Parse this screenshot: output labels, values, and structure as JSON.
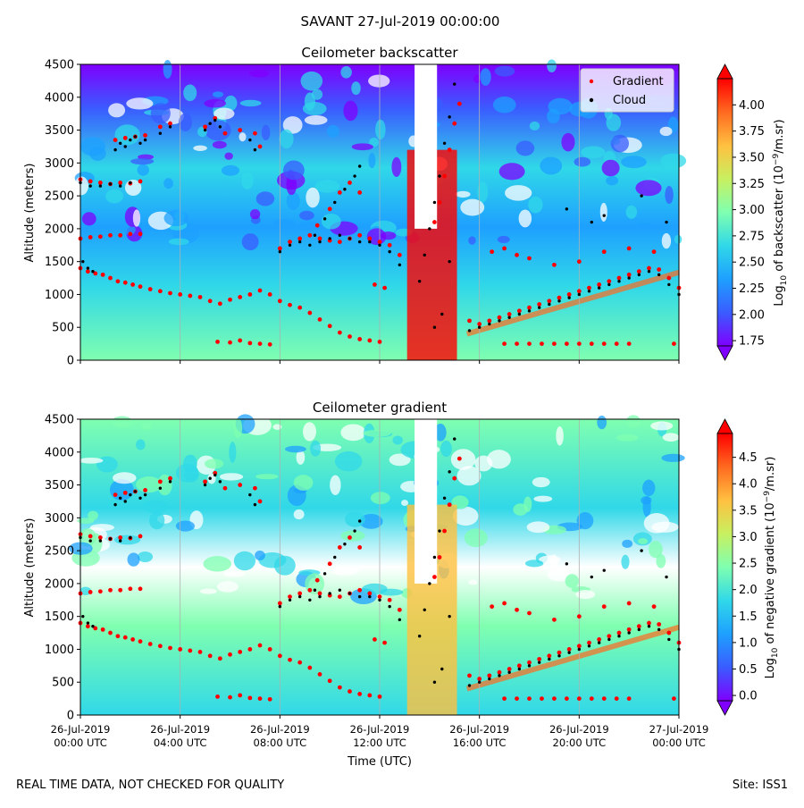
{
  "figure": {
    "title": "SAVANT 27-Jul-2019 00:00:00",
    "footer_left": "REAL TIME DATA, NOT CHECKED FOR QUALITY",
    "footer_right": "Site: ISS1",
    "xlabel": "Time (UTC)"
  },
  "colors": {
    "gradient_marker": "#ff0000",
    "cloud_marker": "#000000",
    "colormap": [
      "#7f00ff",
      "#3a5cff",
      "#1ea0ff",
      "#30d8e8",
      "#7fffb0",
      "#c8f060",
      "#ffc040",
      "#ff6a20",
      "#ff0000"
    ]
  },
  "chart_data": [
    {
      "id": "backscatter",
      "type": "heatmap",
      "title": "Ceilometer backscatter",
      "ylabel": "Altitude (meters)",
      "ylim": [
        0,
        4500
      ],
      "yticks": [
        "0",
        "500",
        "1000",
        "1500",
        "2000",
        "2500",
        "3000",
        "3500",
        "4000",
        "4500"
      ],
      "xticks": [
        {
          "l1": "26-Jul-2019",
          "l2": "00:00 UTC"
        },
        {
          "l1": "26-Jul-2019",
          "l2": "04:00 UTC"
        },
        {
          "l1": "26-Jul-2019",
          "l2": "08:00 UTC"
        },
        {
          "l1": "26-Jul-2019",
          "l2": "12:00 UTC"
        },
        {
          "l1": "26-Jul-2019",
          "l2": "16:00 UTC"
        },
        {
          "l1": "26-Jul-2019",
          "l2": "20:00 UTC"
        },
        {
          "l1": "27-Jul-2019",
          "l2": "00:00 UTC"
        }
      ],
      "xlim_hours": [
        0,
        24
      ],
      "colorbar": {
        "label": "Log10 of backscatter (10^-9/m.sr)",
        "label_parts": {
          "a": "Log",
          "b": "10",
          "c": " of backscatter (10",
          "d": "−9",
          "e": "/m.sr)"
        },
        "range": [
          1.7,
          4.25
        ],
        "ticks": [
          "1.75",
          "2.00",
          "2.25",
          "2.50",
          "2.75",
          "3.00",
          "3.25",
          "3.50",
          "3.75",
          "4.00"
        ],
        "tick_values": [
          1.75,
          2.0,
          2.25,
          2.5,
          2.75,
          3.0,
          3.25,
          3.5,
          3.75,
          4.0
        ]
      },
      "legend": {
        "placement": "top-right",
        "entries": [
          {
            "label": "Gradient",
            "color": "#ff0000"
          },
          {
            "label": "Cloud",
            "color": "#000000"
          }
        ]
      },
      "grid": true
    },
    {
      "id": "gradient",
      "type": "heatmap",
      "title": "Ceilometer gradient",
      "ylabel": "Altitude (meters)",
      "ylim": [
        0,
        4500
      ],
      "yticks": [
        "0",
        "500",
        "1000",
        "1500",
        "2000",
        "2500",
        "3000",
        "3500",
        "4000",
        "4500"
      ],
      "xticks": [
        {
          "l1": "26-Jul-2019",
          "l2": "00:00 UTC"
        },
        {
          "l1": "26-Jul-2019",
          "l2": "04:00 UTC"
        },
        {
          "l1": "26-Jul-2019",
          "l2": "08:00 UTC"
        },
        {
          "l1": "26-Jul-2019",
          "l2": "12:00 UTC"
        },
        {
          "l1": "26-Jul-2019",
          "l2": "16:00 UTC"
        },
        {
          "l1": "26-Jul-2019",
          "l2": "20:00 UTC"
        },
        {
          "l1": "27-Jul-2019",
          "l2": "00:00 UTC"
        }
      ],
      "xlim_hours": [
        0,
        24
      ],
      "colorbar": {
        "label": "Log10 of negative gradient (10^-9/m.sr)",
        "label_parts": {
          "a": "Log",
          "b": "10",
          "c": " of negative gradient (10",
          "d": "−9",
          "e": "/m.sr)"
        },
        "range": [
          -0.1,
          4.95
        ],
        "ticks": [
          "0.0",
          "0.5",
          "1.0",
          "1.5",
          "2.0",
          "2.5",
          "3.0",
          "3.5",
          "4.0",
          "4.5"
        ],
        "tick_values": [
          0.0,
          0.5,
          1.0,
          1.5,
          2.0,
          2.5,
          3.0,
          3.5,
          4.0,
          4.5
        ]
      },
      "grid": true
    }
  ],
  "series": {
    "gradient_points": [
      [
        0.0,
        1400
      ],
      [
        0.3,
        1350
      ],
      [
        0.6,
        1320
      ],
      [
        0.9,
        1300
      ],
      [
        1.2,
        1250
      ],
      [
        1.5,
        1200
      ],
      [
        1.8,
        1180
      ],
      [
        2.1,
        1150
      ],
      [
        2.4,
        1120
      ],
      [
        2.8,
        1080
      ],
      [
        3.2,
        1050
      ],
      [
        3.6,
        1020
      ],
      [
        4.0,
        1000
      ],
      [
        4.4,
        980
      ],
      [
        4.8,
        960
      ],
      [
        5.2,
        900
      ],
      [
        5.6,
        860
      ],
      [
        6.0,
        920
      ],
      [
        6.4,
        960
      ],
      [
        6.8,
        1000
      ],
      [
        7.2,
        1060
      ],
      [
        7.6,
        1000
      ],
      [
        8.0,
        900
      ],
      [
        8.4,
        840
      ],
      [
        8.8,
        800
      ],
      [
        9.2,
        720
      ],
      [
        9.6,
        620
      ],
      [
        10.0,
        520
      ],
      [
        10.4,
        420
      ],
      [
        10.8,
        360
      ],
      [
        11.2,
        320
      ],
      [
        11.6,
        300
      ],
      [
        12.0,
        280
      ],
      [
        0.0,
        1850
      ],
      [
        0.4,
        1870
      ],
      [
        0.8,
        1880
      ],
      [
        1.2,
        1900
      ],
      [
        1.6,
        1900
      ],
      [
        2.0,
        1920
      ],
      [
        2.4,
        1920
      ],
      [
        0.0,
        2750
      ],
      [
        0.4,
        2720
      ],
      [
        0.8,
        2700
      ],
      [
        1.2,
        2680
      ],
      [
        1.6,
        2700
      ],
      [
        2.0,
        2690
      ],
      [
        2.4,
        2720
      ],
      [
        1.4,
        3350
      ],
      [
        1.8,
        3380
      ],
      [
        2.2,
        3400
      ],
      [
        2.6,
        3420
      ],
      [
        3.2,
        3550
      ],
      [
        3.6,
        3600
      ],
      [
        5.0,
        3550
      ],
      [
        5.4,
        3680
      ],
      [
        5.8,
        3450
      ],
      [
        6.4,
        3500
      ],
      [
        7.0,
        3450
      ],
      [
        7.2,
        3250
      ],
      [
        8.0,
        1700
      ],
      [
        8.4,
        1800
      ],
      [
        8.8,
        1850
      ],
      [
        9.2,
        1900
      ],
      [
        9.6,
        1850
      ],
      [
        10.0,
        1820
      ],
      [
        10.4,
        1800
      ],
      [
        10.8,
        1850
      ],
      [
        11.2,
        1900
      ],
      [
        11.6,
        1850
      ],
      [
        12.0,
        1800
      ],
      [
        12.4,
        1750
      ],
      [
        12.8,
        1600
      ],
      [
        9.5,
        2050
      ],
      [
        10.0,
        2300
      ],
      [
        10.4,
        2550
      ],
      [
        10.8,
        2700
      ],
      [
        11.2,
        2550
      ],
      [
        5.5,
        280
      ],
      [
        6.0,
        270
      ],
      [
        6.4,
        300
      ],
      [
        6.8,
        260
      ],
      [
        7.2,
        250
      ],
      [
        7.6,
        240
      ],
      [
        11.8,
        1150
      ],
      [
        12.2,
        1100
      ],
      [
        14.2,
        2100
      ],
      [
        14.4,
        2400
      ],
      [
        14.6,
        2800
      ],
      [
        14.8,
        3200
      ],
      [
        15.0,
        3600
      ],
      [
        15.2,
        3900
      ],
      [
        15.6,
        600
      ],
      [
        16.0,
        550
      ],
      [
        16.4,
        600
      ],
      [
        16.8,
        650
      ],
      [
        17.2,
        700
      ],
      [
        17.6,
        750
      ],
      [
        18.0,
        800
      ],
      [
        18.4,
        850
      ],
      [
        18.8,
        900
      ],
      [
        19.2,
        950
      ],
      [
        19.6,
        1000
      ],
      [
        20.0,
        1050
      ],
      [
        20.4,
        1100
      ],
      [
        20.8,
        1150
      ],
      [
        21.2,
        1200
      ],
      [
        21.6,
        1250
      ],
      [
        22.0,
        1300
      ],
      [
        22.4,
        1350
      ],
      [
        22.8,
        1400
      ],
      [
        23.2,
        1380
      ],
      [
        23.6,
        1250
      ],
      [
        24.0,
        1100
      ],
      [
        17.0,
        250
      ],
      [
        17.5,
        250
      ],
      [
        18.0,
        250
      ],
      [
        18.5,
        250
      ],
      [
        19.0,
        250
      ],
      [
        19.5,
        250
      ],
      [
        20.0,
        250
      ],
      [
        20.5,
        250
      ],
      [
        21.0,
        250
      ],
      [
        21.5,
        250
      ],
      [
        22.0,
        250
      ],
      [
        23.8,
        250
      ],
      [
        16.5,
        1650
      ],
      [
        17.0,
        1700
      ],
      [
        17.5,
        1600
      ],
      [
        18.0,
        1550
      ],
      [
        19.0,
        1450
      ],
      [
        20.0,
        1500
      ],
      [
        21.0,
        1650
      ],
      [
        22.0,
        1700
      ],
      [
        23.0,
        1650
      ]
    ],
    "cloud_points": [
      [
        0.0,
        2700
      ],
      [
        0.4,
        2650
      ],
      [
        0.8,
        2650
      ],
      [
        1.2,
        2680
      ],
      [
        1.6,
        2650
      ],
      [
        2.0,
        2700
      ],
      [
        1.4,
        3200
      ],
      [
        1.6,
        3300
      ],
      [
        1.8,
        3250
      ],
      [
        2.0,
        3350
      ],
      [
        2.2,
        3400
      ],
      [
        2.4,
        3300
      ],
      [
        2.6,
        3350
      ],
      [
        3.2,
        3450
      ],
      [
        3.6,
        3550
      ],
      [
        5.0,
        3500
      ],
      [
        5.2,
        3600
      ],
      [
        5.4,
        3650
      ],
      [
        5.6,
        3550
      ],
      [
        6.8,
        3350
      ],
      [
        7.0,
        3200
      ],
      [
        0.1,
        1500
      ],
      [
        0.3,
        1400
      ],
      [
        0.5,
        1350
      ],
      [
        8.0,
        1650
      ],
      [
        8.4,
        1750
      ],
      [
        8.8,
        1800
      ],
      [
        9.2,
        1750
      ],
      [
        9.6,
        1800
      ],
      [
        10.0,
        1850
      ],
      [
        10.4,
        1900
      ],
      [
        10.8,
        1850
      ],
      [
        11.2,
        1800
      ],
      [
        11.6,
        1800
      ],
      [
        12.0,
        1750
      ],
      [
        12.4,
        1650
      ],
      [
        12.8,
        1450
      ],
      [
        9.4,
        1900
      ],
      [
        9.8,
        2150
      ],
      [
        10.2,
        2400
      ],
      [
        10.6,
        2600
      ],
      [
        11.0,
        2800
      ],
      [
        11.2,
        2950
      ],
      [
        13.6,
        1200
      ],
      [
        13.8,
        1600
      ],
      [
        14.0,
        2000
      ],
      [
        14.2,
        2400
      ],
      [
        14.4,
        2800
      ],
      [
        14.6,
        3300
      ],
      [
        14.8,
        3700
      ],
      [
        15.0,
        4200
      ],
      [
        14.5,
        700
      ],
      [
        14.2,
        500
      ],
      [
        14.8,
        1500
      ],
      [
        15.6,
        450
      ],
      [
        16.0,
        500
      ],
      [
        16.4,
        550
      ],
      [
        16.8,
        600
      ],
      [
        17.2,
        650
      ],
      [
        17.6,
        700
      ],
      [
        18.0,
        750
      ],
      [
        18.4,
        800
      ],
      [
        18.8,
        850
      ],
      [
        19.2,
        900
      ],
      [
        19.6,
        950
      ],
      [
        20.0,
        1000
      ],
      [
        20.4,
        1050
      ],
      [
        20.8,
        1100
      ],
      [
        21.2,
        1150
      ],
      [
        21.6,
        1200
      ],
      [
        22.0,
        1250
      ],
      [
        22.4,
        1300
      ],
      [
        22.8,
        1350
      ],
      [
        23.2,
        1300
      ],
      [
        23.6,
        1150
      ],
      [
        24.0,
        1000
      ],
      [
        21.0,
        2200
      ],
      [
        22.5,
        2500
      ],
      [
        23.5,
        2100
      ],
      [
        19.5,
        2300
      ],
      [
        20.5,
        2100
      ]
    ]
  }
}
